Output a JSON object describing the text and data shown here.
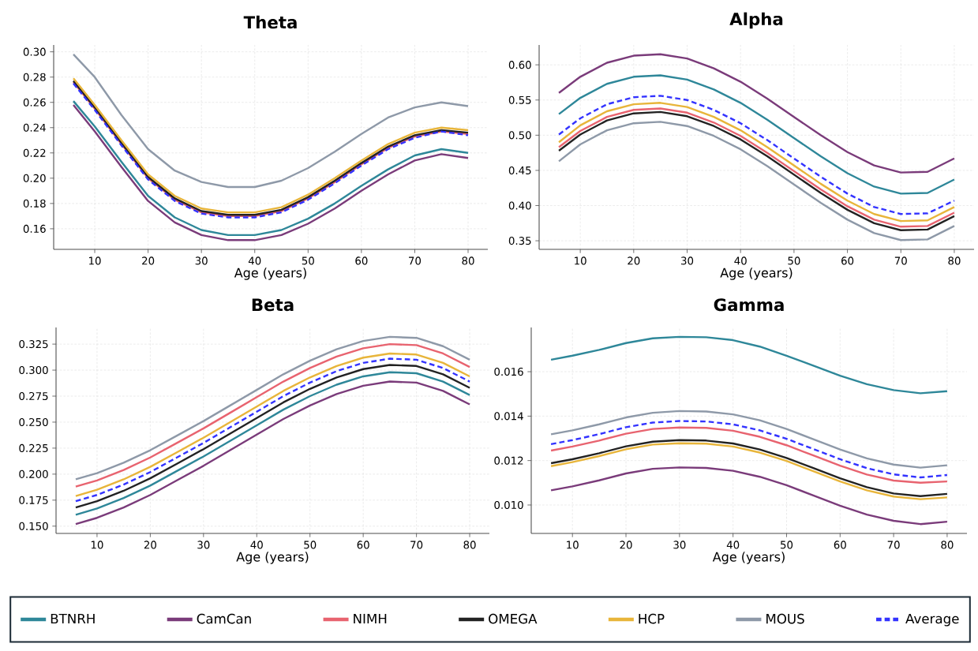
{
  "chart_data": [
    {
      "type": "line",
      "title": "Theta",
      "xlabel": "Age (years)",
      "grid": true,
      "x": [
        6,
        10,
        15,
        20,
        25,
        30,
        35,
        40,
        45,
        50,
        55,
        60,
        65,
        70,
        75,
        80
      ],
      "xlim": [
        2.3,
        83.7
      ],
      "xticks": [
        10,
        20,
        30,
        40,
        50,
        60,
        70,
        80
      ],
      "ylim": [
        0.1437,
        0.3054
      ],
      "yticks": [
        0.16,
        0.18,
        {
          "value": 0.2,
          "label": "0.20"
        },
        0.22,
        0.24,
        0.26,
        0.28,
        {
          "value": 0.3,
          "label": "0.30"
        }
      ],
      "series": [
        {
          "color": "#2e8799",
          "values": [
            0.261,
            0.241,
            0.213,
            0.186,
            0.169,
            0.159,
            0.155,
            0.155,
            0.159,
            0.168,
            0.18,
            0.194,
            0.207,
            0.218,
            0.223,
            0.22
          ]
        },
        {
          "color": "#7a3b7a",
          "values": [
            0.258,
            0.237,
            0.209,
            0.182,
            0.165,
            0.155,
            0.151,
            0.151,
            0.155,
            0.164,
            0.176,
            0.19,
            0.203,
            0.214,
            0.219,
            0.216
          ]
        },
        {
          "color": "#e8636f",
          "values": [
            0.276,
            0.255,
            0.227,
            0.2,
            0.183,
            0.173,
            0.17,
            0.17,
            0.174,
            0.184,
            0.197,
            0.211,
            0.224,
            0.233,
            0.237,
            0.235
          ]
        },
        {
          "color": "#222222",
          "values": [
            0.277,
            0.256,
            0.228,
            0.201,
            0.184,
            0.174,
            0.171,
            0.171,
            0.175,
            0.185,
            0.198,
            0.212,
            0.225,
            0.234,
            0.238,
            0.236
          ]
        },
        {
          "color": "#e8b53a",
          "values": [
            0.279,
            0.258,
            0.23,
            0.203,
            0.186,
            0.176,
            0.173,
            0.173,
            0.177,
            0.187,
            0.2,
            0.214,
            0.227,
            0.236,
            0.24,
            0.238
          ]
        },
        {
          "color": "#8e99a8",
          "values": [
            0.298,
            0.28,
            0.25,
            0.223,
            0.206,
            0.197,
            0.193,
            0.193,
            0.198,
            0.208,
            0.221,
            0.235,
            0.248,
            0.256,
            0.26,
            0.257
          ]
        },
        {
          "color": "#3333ff",
          "line_style": "dashed",
          "values": [
            0.275,
            0.254,
            0.226,
            0.199,
            0.182,
            0.172,
            0.169,
            0.169,
            0.173,
            0.183,
            0.196,
            0.21,
            0.223,
            0.232,
            0.237,
            0.234
          ]
        }
      ]
    },
    {
      "type": "line",
      "title": "Alpha",
      "xlabel": "Age (years)",
      "grid": true,
      "x": [
        6,
        10,
        15,
        20,
        25,
        30,
        35,
        40,
        45,
        50,
        55,
        60,
        65,
        70,
        75,
        80
      ],
      "xlim": [
        2.3,
        83.7
      ],
      "xticks": [
        10,
        20,
        30,
        40,
        50,
        60,
        70,
        80
      ],
      "ylim": [
        0.3378,
        0.6282
      ],
      "yticks": [
        0.35,
        {
          "value": 0.4,
          "label": "0.40"
        },
        0.45,
        {
          "value": 0.5,
          "label": "0.50"
        },
        0.55,
        {
          "value": 0.6,
          "label": "0.60"
        }
      ],
      "series": [
        {
          "color": "#2e8799",
          "values": [
            0.53,
            0.553,
            0.573,
            0.583,
            0.585,
            0.579,
            0.565,
            0.546,
            0.522,
            0.496,
            0.47,
            0.446,
            0.427,
            0.417,
            0.418,
            0.437
          ]
        },
        {
          "color": "#7a3b7a",
          "values": [
            0.56,
            0.583,
            0.603,
            0.613,
            0.615,
            0.609,
            0.595,
            0.576,
            0.552,
            0.526,
            0.5,
            0.476,
            0.457,
            0.447,
            0.448,
            0.467
          ]
        },
        {
          "color": "#e8636f",
          "values": [
            0.483,
            0.506,
            0.526,
            0.536,
            0.538,
            0.532,
            0.518,
            0.499,
            0.475,
            0.449,
            0.423,
            0.399,
            0.38,
            0.37,
            0.371,
            0.39
          ]
        },
        {
          "color": "#222222",
          "values": [
            0.478,
            0.501,
            0.521,
            0.531,
            0.533,
            0.527,
            0.513,
            0.494,
            0.47,
            0.444,
            0.418,
            0.394,
            0.375,
            0.365,
            0.366,
            0.385
          ]
        },
        {
          "color": "#e8b53a",
          "values": [
            0.49,
            0.514,
            0.534,
            0.544,
            0.546,
            0.54,
            0.526,
            0.507,
            0.483,
            0.457,
            0.431,
            0.407,
            0.388,
            0.378,
            0.379,
            0.398
          ]
        },
        {
          "color": "#8e99a8",
          "values": [
            0.463,
            0.487,
            0.507,
            0.517,
            0.519,
            0.513,
            0.499,
            0.48,
            0.456,
            0.43,
            0.404,
            0.38,
            0.361,
            0.351,
            0.352,
            0.371
          ]
        },
        {
          "color": "#3333ff",
          "line_style": "dashed",
          "values": [
            0.501,
            0.524,
            0.544,
            0.554,
            0.556,
            0.55,
            0.536,
            0.517,
            0.493,
            0.467,
            0.441,
            0.417,
            0.398,
            0.388,
            0.389,
            0.407
          ]
        }
      ]
    },
    {
      "type": "line",
      "title": "Beta",
      "xlabel": "Age (years)",
      "grid": true,
      "x": [
        6,
        10,
        15,
        20,
        25,
        30,
        35,
        40,
        45,
        50,
        55,
        60,
        65,
        70,
        75,
        80
      ],
      "xlim": [
        2.3,
        83.7
      ],
      "xticks": [
        10,
        20,
        30,
        40,
        50,
        60,
        70,
        80
      ],
      "ylim": [
        0.143,
        0.341
      ],
      "yticks": [
        {
          "value": 0.15,
          "label": "0.150"
        },
        0.175,
        {
          "value": 0.2,
          "label": "0.200"
        },
        0.225,
        {
          "value": 0.25,
          "label": "0.250"
        },
        0.275,
        {
          "value": 0.3,
          "label": "0.300"
        },
        0.325
      ],
      "series": [
        {
          "color": "#2e8799",
          "values": [
            0.161,
            0.167,
            0.177,
            0.189,
            0.203,
            0.217,
            0.232,
            0.247,
            0.262,
            0.275,
            0.286,
            0.294,
            0.298,
            0.297,
            0.289,
            0.276
          ]
        },
        {
          "color": "#7a3b7a",
          "values": [
            0.152,
            0.158,
            0.168,
            0.18,
            0.194,
            0.208,
            0.223,
            0.238,
            0.253,
            0.266,
            0.277,
            0.285,
            0.289,
            0.288,
            0.28,
            0.267
          ]
        },
        {
          "color": "#e8636f",
          "values": [
            0.188,
            0.194,
            0.204,
            0.216,
            0.23,
            0.244,
            0.259,
            0.274,
            0.289,
            0.302,
            0.313,
            0.321,
            0.325,
            0.324,
            0.316,
            0.303
          ]
        },
        {
          "color": "#222222",
          "values": [
            0.168,
            0.174,
            0.184,
            0.196,
            0.21,
            0.224,
            0.239,
            0.254,
            0.269,
            0.282,
            0.293,
            0.301,
            0.305,
            0.304,
            0.296,
            0.283
          ]
        },
        {
          "color": "#e8b53a",
          "values": [
            0.179,
            0.185,
            0.195,
            0.207,
            0.221,
            0.235,
            0.25,
            0.265,
            0.28,
            0.293,
            0.304,
            0.312,
            0.316,
            0.315,
            0.307,
            0.294
          ]
        },
        {
          "color": "#8e99a8",
          "values": [
            0.195,
            0.201,
            0.211,
            0.223,
            0.237,
            0.251,
            0.266,
            0.281,
            0.296,
            0.309,
            0.32,
            0.328,
            0.332,
            0.331,
            0.323,
            0.31
          ]
        },
        {
          "color": "#3333ff",
          "line_style": "dashed",
          "values": [
            0.174,
            0.18,
            0.19,
            0.202,
            0.216,
            0.23,
            0.245,
            0.26,
            0.275,
            0.288,
            0.299,
            0.307,
            0.311,
            0.31,
            0.302,
            0.289
          ]
        }
      ]
    },
    {
      "type": "line",
      "title": "Gamma",
      "xlabel": "Age (years)",
      "grid": true,
      "legend": "bottom",
      "x": [
        6,
        10,
        15,
        20,
        25,
        30,
        35,
        40,
        45,
        50,
        55,
        60,
        65,
        70,
        75,
        80
      ],
      "xlim": [
        2.3,
        83.7
      ],
      "xticks": [
        10,
        20,
        30,
        40,
        50,
        60,
        70,
        80
      ],
      "ylim": [
        0.00872,
        0.01799
      ],
      "yticks": [
        {
          "value": 0.01,
          "label": "0.010"
        },
        {
          "value": 0.012,
          "label": "0.012"
        },
        {
          "value": 0.014,
          "label": "0.014"
        },
        {
          "value": 0.016,
          "label": "0.016"
        }
      ],
      "series": [
        {
          "name": "BTNRH",
          "color": "#2e8799",
          "values": [
            0.01654,
            0.01672,
            0.01698,
            0.01729,
            0.0175,
            0.01757,
            0.01755,
            0.01742,
            0.01713,
            0.01672,
            0.01627,
            0.01582,
            0.01544,
            0.01517,
            0.01503,
            0.01512
          ]
        },
        {
          "name": "CamCan",
          "color": "#7a3b7a",
          "values": [
            0.01066,
            0.01084,
            0.01111,
            0.01142,
            0.01163,
            0.01169,
            0.01167,
            0.01154,
            0.01127,
            0.01089,
            0.01043,
            0.00997,
            0.00957,
            0.00929,
            0.00914,
            0.00925
          ]
        },
        {
          "name": "NIMH",
          "color": "#e8636f",
          "values": [
            0.01245,
            0.01263,
            0.0129,
            0.01321,
            0.01342,
            0.01349,
            0.01347,
            0.01334,
            0.01307,
            0.01269,
            0.01223,
            0.01177,
            0.01137,
            0.0111,
            0.011,
            0.01106
          ]
        },
        {
          "name": "OMEGA",
          "color": "#222222",
          "values": [
            0.01188,
            0.01206,
            0.01233,
            0.01264,
            0.01285,
            0.01292,
            0.0129,
            0.01277,
            0.0125,
            0.01212,
            0.01166,
            0.0112,
            0.0108,
            0.01052,
            0.0104,
            0.0105
          ]
        },
        {
          "name": "HCP",
          "color": "#e8b53a",
          "values": [
            0.01175,
            0.01193,
            0.0122,
            0.01251,
            0.01272,
            0.01278,
            0.01276,
            0.01263,
            0.01236,
            0.01198,
            0.01152,
            0.01106,
            0.01066,
            0.01038,
            0.01026,
            0.01034
          ]
        },
        {
          "name": "MOUS",
          "color": "#8e99a8",
          "values": [
            0.01318,
            0.01336,
            0.01363,
            0.01394,
            0.01415,
            0.01423,
            0.01421,
            0.01408,
            0.01381,
            0.01342,
            0.01296,
            0.0125,
            0.0121,
            0.01182,
            0.01168,
            0.01179
          ]
        },
        {
          "name": "Average",
          "color": "#3333ff",
          "line_style": "dashed",
          "values": [
            0.01274,
            0.01292,
            0.01319,
            0.0135,
            0.01371,
            0.01378,
            0.01376,
            0.01363,
            0.01336,
            0.01298,
            0.01252,
            0.01206,
            0.01166,
            0.01138,
            0.01124,
            0.01135
          ]
        }
      ]
    }
  ]
}
